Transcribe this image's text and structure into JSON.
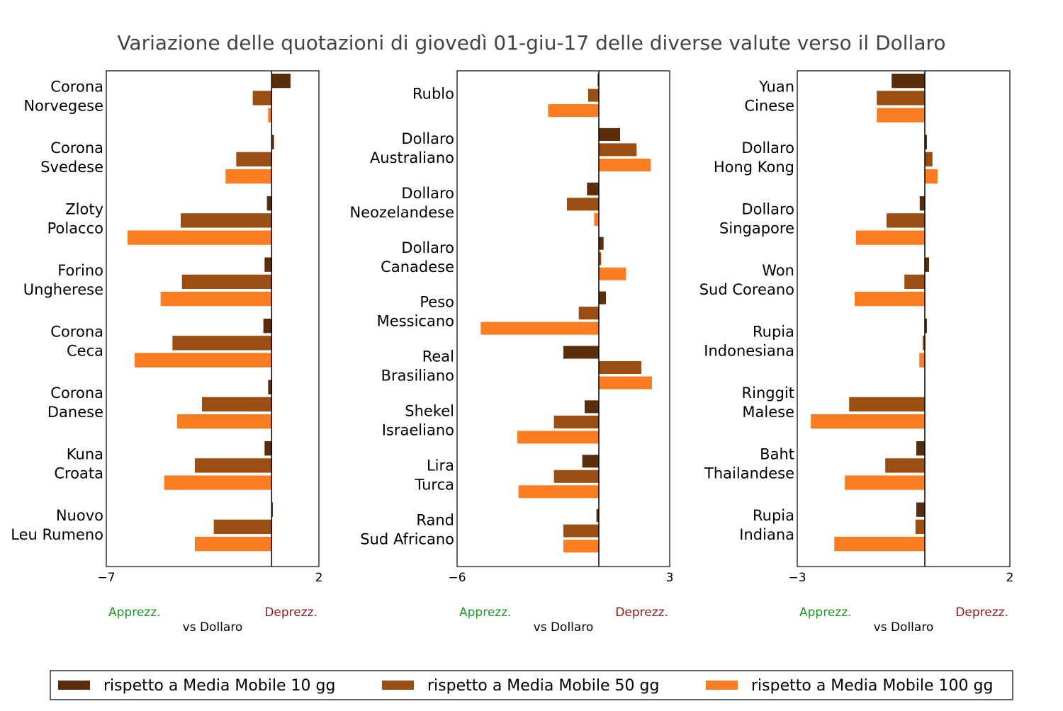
{
  "title": "Variazione delle quotazioni di giovedì 01-giu-17 delle diverse valute verso il Dollaro",
  "colors": {
    "ma10": "#5a2e0c",
    "ma50": "#9a4e12",
    "ma100": "#fb7d22",
    "appreciation": "#1e9622",
    "depreciation": "#8b1a1a",
    "title": "#444444"
  },
  "legend": {
    "items": [
      {
        "label": "rispetto a Media Mobile 10 gg",
        "color": "#5a2e0c"
      },
      {
        "label": "rispetto a Media Mobile 50 gg",
        "color": "#9a4e12"
      },
      {
        "label": "rispetto a Media Mobile 100 gg",
        "color": "#fb7d22"
      }
    ]
  },
  "chart_data": [
    {
      "type": "bar",
      "orientation": "horizontal",
      "xlim": [
        -7,
        2
      ],
      "xticks": [
        "−7",
        "2"
      ],
      "xlabel": "vs Dollaro",
      "left_note": "Apprezz.",
      "right_note": "Deprezz.",
      "categories": [
        [
          "Corona",
          "Norvegese"
        ],
        [
          "Corona",
          "Svedese"
        ],
        [
          "Zloty",
          "Polacco"
        ],
        [
          "Forino",
          "Ungherese"
        ],
        [
          "Corona",
          "Ceca"
        ],
        [
          "Corona",
          "Danese"
        ],
        [
          "Kuna",
          "Croata"
        ],
        [
          "Nuovo",
          "Leu Rumeno"
        ]
      ],
      "series": [
        {
          "name": "rispetto a Media Mobile 10 gg",
          "values": [
            0.8,
            0.1,
            -0.2,
            -0.3,
            -0.35,
            -0.15,
            -0.3,
            0.05
          ]
        },
        {
          "name": "rispetto a Media Mobile 50 gg",
          "values": [
            -0.8,
            -1.5,
            -3.85,
            -3.8,
            -4.2,
            -2.95,
            -3.25,
            -2.45
          ]
        },
        {
          "name": "rispetto a Media Mobile 100 gg",
          "values": [
            -0.15,
            -1.95,
            -6.1,
            -4.7,
            -5.8,
            -4.0,
            -4.55,
            -3.25
          ]
        }
      ]
    },
    {
      "type": "bar",
      "orientation": "horizontal",
      "xlim": [
        -6,
        3
      ],
      "xticks": [
        "−6",
        "3"
      ],
      "xlabel": "vs Dollaro",
      "left_note": "Apprezz.",
      "right_note": "Deprezz.",
      "categories": [
        [
          "Rublo"
        ],
        [
          "Dollaro",
          "Australiano"
        ],
        [
          "Dollaro",
          "Neozelandese"
        ],
        [
          "Dollaro",
          "Canadese"
        ],
        [
          "Peso",
          "Messicano"
        ],
        [
          "Real",
          "Brasiliano"
        ],
        [
          "Shekel",
          "Israeliano"
        ],
        [
          "Lira",
          "Turca"
        ],
        [
          "Rand",
          "Sud Africano"
        ]
      ],
      "series": [
        {
          "name": "rispetto a Media Mobile 10 gg",
          "values": [
            -0.05,
            0.9,
            -0.5,
            0.2,
            0.3,
            -1.5,
            -0.6,
            -0.7,
            -0.1
          ]
        },
        {
          "name": "rispetto a Media Mobile 50 gg",
          "values": [
            -0.45,
            1.6,
            -1.35,
            0.1,
            -0.85,
            1.8,
            -1.9,
            -1.9,
            -1.5
          ]
        },
        {
          "name": "rispetto a Media Mobile 100 gg",
          "values": [
            -2.15,
            2.2,
            -0.2,
            1.15,
            -5.0,
            2.25,
            -3.45,
            -3.4,
            -1.5
          ]
        }
      ]
    },
    {
      "type": "bar",
      "orientation": "horizontal",
      "xlim": [
        -3,
        2
      ],
      "xticks": [
        "−3",
        "2"
      ],
      "xlabel": "vs Dollaro",
      "left_note": "Apprezz.",
      "right_note": "Deprezz.",
      "categories": [
        [
          "Yuan",
          "Cinese"
        ],
        [
          "Dollaro",
          "Hong Kong"
        ],
        [
          "Dollaro",
          "Singapore"
        ],
        [
          "Won",
          "Sud Coreano"
        ],
        [
          "Rupia",
          "Indonesiana"
        ],
        [
          "Ringgit",
          "Malese"
        ],
        [
          "Baht",
          "Thailandese"
        ],
        [
          "Rupia",
          "Indiana"
        ]
      ],
      "series": [
        {
          "name": "rispetto a Media Mobile 10 gg",
          "values": [
            -0.78,
            0.05,
            -0.12,
            0.1,
            0.05,
            0.0,
            -0.2,
            -0.2
          ]
        },
        {
          "name": "rispetto a Media Mobile 50 gg",
          "values": [
            -1.13,
            0.18,
            -0.9,
            -0.48,
            -0.05,
            -1.78,
            -0.93,
            -0.22
          ]
        },
        {
          "name": "rispetto a Media Mobile 100 gg",
          "values": [
            -1.13,
            0.3,
            -1.62,
            -1.65,
            -0.13,
            -2.68,
            -1.88,
            -2.13
          ]
        }
      ]
    }
  ]
}
